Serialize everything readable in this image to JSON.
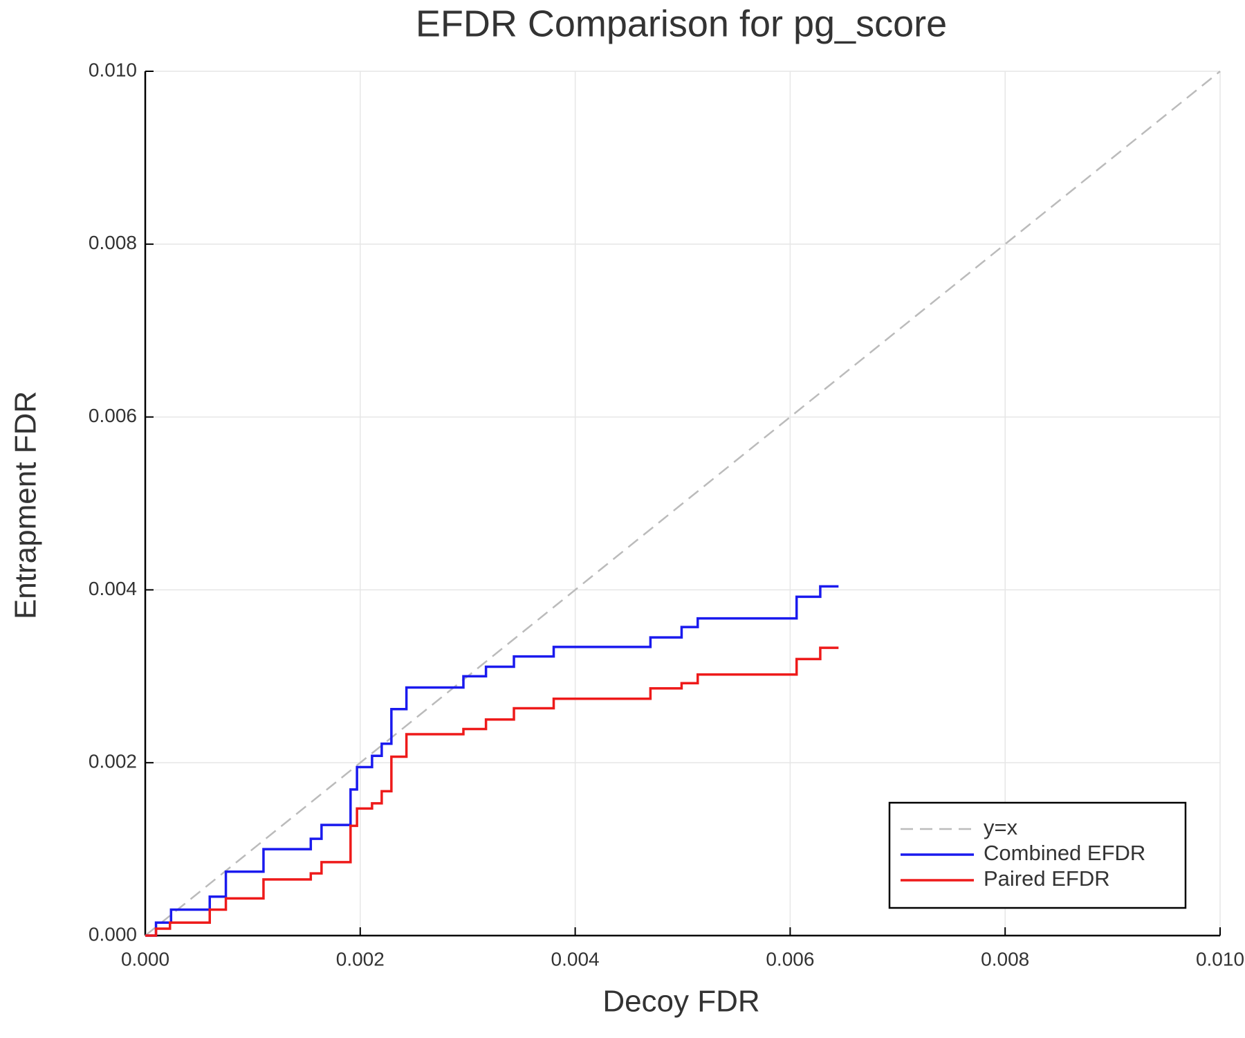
{
  "chart_data": {
    "type": "line",
    "title": "EFDR Comparison for pg_score",
    "x_label": "Decoy FDR",
    "y_label": "Entrapment FDR",
    "xlim": [
      0,
      0.01
    ],
    "ylim": [
      0,
      0.01
    ],
    "xticks": [
      {
        "value": 0,
        "label": "0.000"
      },
      {
        "value": 0.002,
        "label": "0.002"
      },
      {
        "value": 0.004,
        "label": "0.004"
      },
      {
        "value": 0.006,
        "label": "0.006"
      },
      {
        "value": 0.008,
        "label": "0.008"
      },
      {
        "value": 0.01,
        "label": "0.010"
      }
    ],
    "yticks": [
      {
        "value": 0,
        "label": "0.000"
      },
      {
        "value": 0.002,
        "label": "0.002"
      },
      {
        "value": 0.004,
        "label": "0.004"
      },
      {
        "value": 0.006,
        "label": "0.006"
      },
      {
        "value": 0.008,
        "label": "0.008"
      },
      {
        "value": 0.01,
        "label": "0.010"
      }
    ],
    "grid": true,
    "legend": "lower right",
    "series": [
      {
        "name": "y=x",
        "color": "#bbbbbb",
        "dashed": true,
        "x": [
          0,
          0.01
        ],
        "y": [
          0,
          0.01
        ]
      },
      {
        "name": "Combined EFDR",
        "color": "#1a1aee",
        "dashed": false,
        "x": [
          0,
          0.0001,
          0.0001,
          0.00024,
          0.00024,
          0.0006,
          0.0006,
          0.00075,
          0.00075,
          0.0011,
          0.0011,
          0.00154,
          0.00154,
          0.00164,
          0.00164,
          0.00191,
          0.00191,
          0.00197,
          0.00197,
          0.00211,
          0.00211,
          0.0022,
          0.0022,
          0.00229,
          0.00229,
          0.00243,
          0.00243,
          0.00296,
          0.00296,
          0.00317,
          0.00317,
          0.00343,
          0.00343,
          0.0038,
          0.0038,
          0.0047,
          0.0047,
          0.00499,
          0.00499,
          0.00514,
          0.00514,
          0.00606,
          0.00606,
          0.00628,
          0.00628,
          0.00645
        ],
        "y": [
          0,
          0,
          0.00015,
          0.00015,
          0.0003,
          0.0003,
          0.00045,
          0.00045,
          0.00074,
          0.00074,
          0.001,
          0.001,
          0.00112,
          0.00112,
          0.00128,
          0.00128,
          0.00169,
          0.00169,
          0.00195,
          0.00195,
          0.00208,
          0.00208,
          0.00222,
          0.00222,
          0.00262,
          0.00262,
          0.00287,
          0.00287,
          0.003,
          0.003,
          0.00311,
          0.00311,
          0.00323,
          0.00323,
          0.00334,
          0.00334,
          0.00345,
          0.00345,
          0.00357,
          0.00357,
          0.00367,
          0.00367,
          0.00392,
          0.00392,
          0.00404,
          0.00404
        ]
      },
      {
        "name": "Paired EFDR",
        "color": "#ee1a1a",
        "dashed": false,
        "x": [
          0,
          0.0001,
          0.0001,
          0.00023,
          0.00023,
          0.0006,
          0.0006,
          0.00075,
          0.00075,
          0.0011,
          0.0011,
          0.00154,
          0.00154,
          0.00164,
          0.00164,
          0.00191,
          0.00191,
          0.00197,
          0.00197,
          0.00211,
          0.00211,
          0.0022,
          0.0022,
          0.00229,
          0.00229,
          0.00243,
          0.00243,
          0.00296,
          0.00296,
          0.00317,
          0.00317,
          0.00343,
          0.00343,
          0.0038,
          0.0038,
          0.0047,
          0.0047,
          0.00499,
          0.00499,
          0.00514,
          0.00514,
          0.00606,
          0.00606,
          0.00628,
          0.00628,
          0.00645
        ],
        "y": [
          0,
          0,
          8e-05,
          8e-05,
          0.00015,
          0.00015,
          0.0003,
          0.0003,
          0.00043,
          0.00043,
          0.00065,
          0.00065,
          0.00072,
          0.00072,
          0.00085,
          0.00085,
          0.00127,
          0.00127,
          0.00147,
          0.00147,
          0.00153,
          0.00153,
          0.00167,
          0.00167,
          0.00207,
          0.00207,
          0.00233,
          0.00233,
          0.00239,
          0.00239,
          0.0025,
          0.0025,
          0.00263,
          0.00263,
          0.00274,
          0.00274,
          0.00286,
          0.00286,
          0.00292,
          0.00292,
          0.00302,
          0.00302,
          0.0032,
          0.0032,
          0.00333,
          0.00333
        ]
      }
    ]
  }
}
